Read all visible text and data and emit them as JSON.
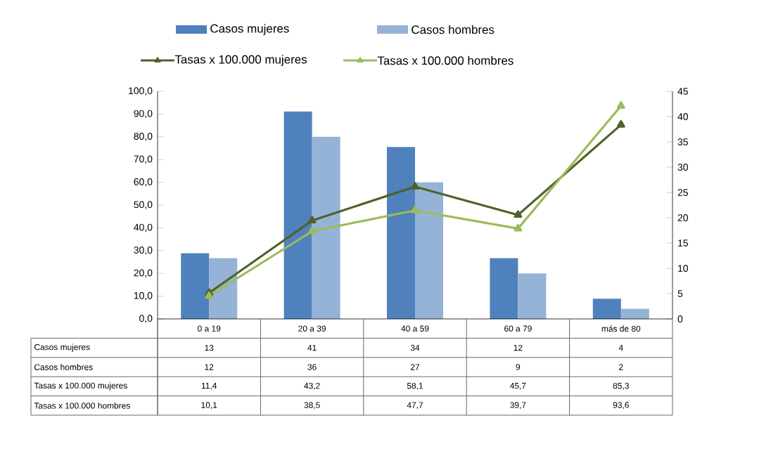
{
  "chart_data": {
    "type": "bar",
    "categories": [
      "0 a 19",
      "20 a 39",
      "40 a 59",
      "60 a 79",
      "más de 80"
    ],
    "series": [
      {
        "name": "Casos mujeres",
        "axis": "y2",
        "color": "#4f81bd",
        "values": [
          13,
          41,
          34,
          12,
          4
        ],
        "value_labels": [
          "13",
          "41",
          "34",
          "12",
          "4"
        ]
      },
      {
        "name": "Casos hombres",
        "axis": "y2",
        "color": "#95b3d7",
        "values": [
          12,
          36,
          27,
          9,
          2
        ],
        "value_labels": [
          "12",
          "36",
          "27",
          "9",
          "2"
        ]
      },
      {
        "name": "Tasas x 100.000 mujeres",
        "type": "line",
        "axis": "y",
        "marker": "triangle",
        "color": "#4f6228",
        "values": [
          11.4,
          43.2,
          58.1,
          45.7,
          85.3
        ],
        "value_labels": [
          "11,4",
          "43,2",
          "58,1",
          "45,7",
          "85,3"
        ]
      },
      {
        "name": "Tasas x 100.000 hombres",
        "type": "line",
        "axis": "y",
        "marker": "triangle",
        "color": "#9bbb59",
        "values": [
          10.1,
          38.5,
          47.7,
          39.7,
          93.6
        ],
        "value_labels": [
          "10,1",
          "38,5",
          "47,7",
          "39,7",
          "93,6"
        ]
      }
    ],
    "ylim": [
      0,
      100
    ],
    "yticks": [
      {
        "value": 0,
        "label": "0,0"
      },
      {
        "value": 10,
        "label": "10,0"
      },
      {
        "value": 20,
        "label": "20,0"
      },
      {
        "value": 30,
        "label": "30,0"
      },
      {
        "value": 40,
        "label": "40,0"
      },
      {
        "value": 50,
        "label": "50,0"
      },
      {
        "value": 60,
        "label": "60,0"
      },
      {
        "value": 70,
        "label": "70,0"
      },
      {
        "value": 80,
        "label": "80,0"
      },
      {
        "value": 90,
        "label": "90,0"
      },
      {
        "value": 100,
        "label": "100,0"
      }
    ],
    "y2lim": [
      0,
      45
    ],
    "y2ticks": [
      0,
      5,
      10,
      15,
      20,
      25,
      30,
      35,
      40,
      45
    ],
    "legend": "top"
  }
}
